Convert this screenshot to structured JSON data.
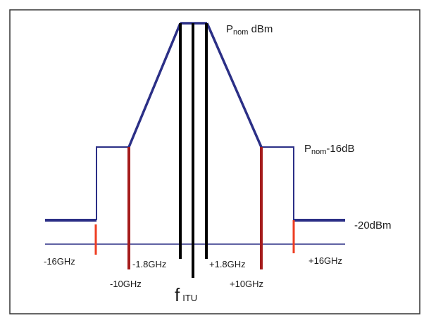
{
  "colors": {
    "mask": "#2b2f86",
    "edge_red": "#a51c1c",
    "marker_red": "#ee3d22",
    "channel": "#000000",
    "frame": "#333333"
  },
  "labels": {
    "p_nom": {
      "main": "P",
      "sub": "nom",
      "suffix": " dBm"
    },
    "p_nom_16": {
      "main": "P",
      "sub": "nom",
      "suffix": "-16dB"
    },
    "minus20": "-20dBm",
    "neg16": "-16GHz",
    "neg10": "-10GHz",
    "neg1_8": "-1.8GHz",
    "pos1_8": "+1.8GHz",
    "pos10": "+10GHz",
    "pos16": "+16GHz",
    "f_itu": {
      "main": "f",
      "sub": "ITU"
    }
  }
}
